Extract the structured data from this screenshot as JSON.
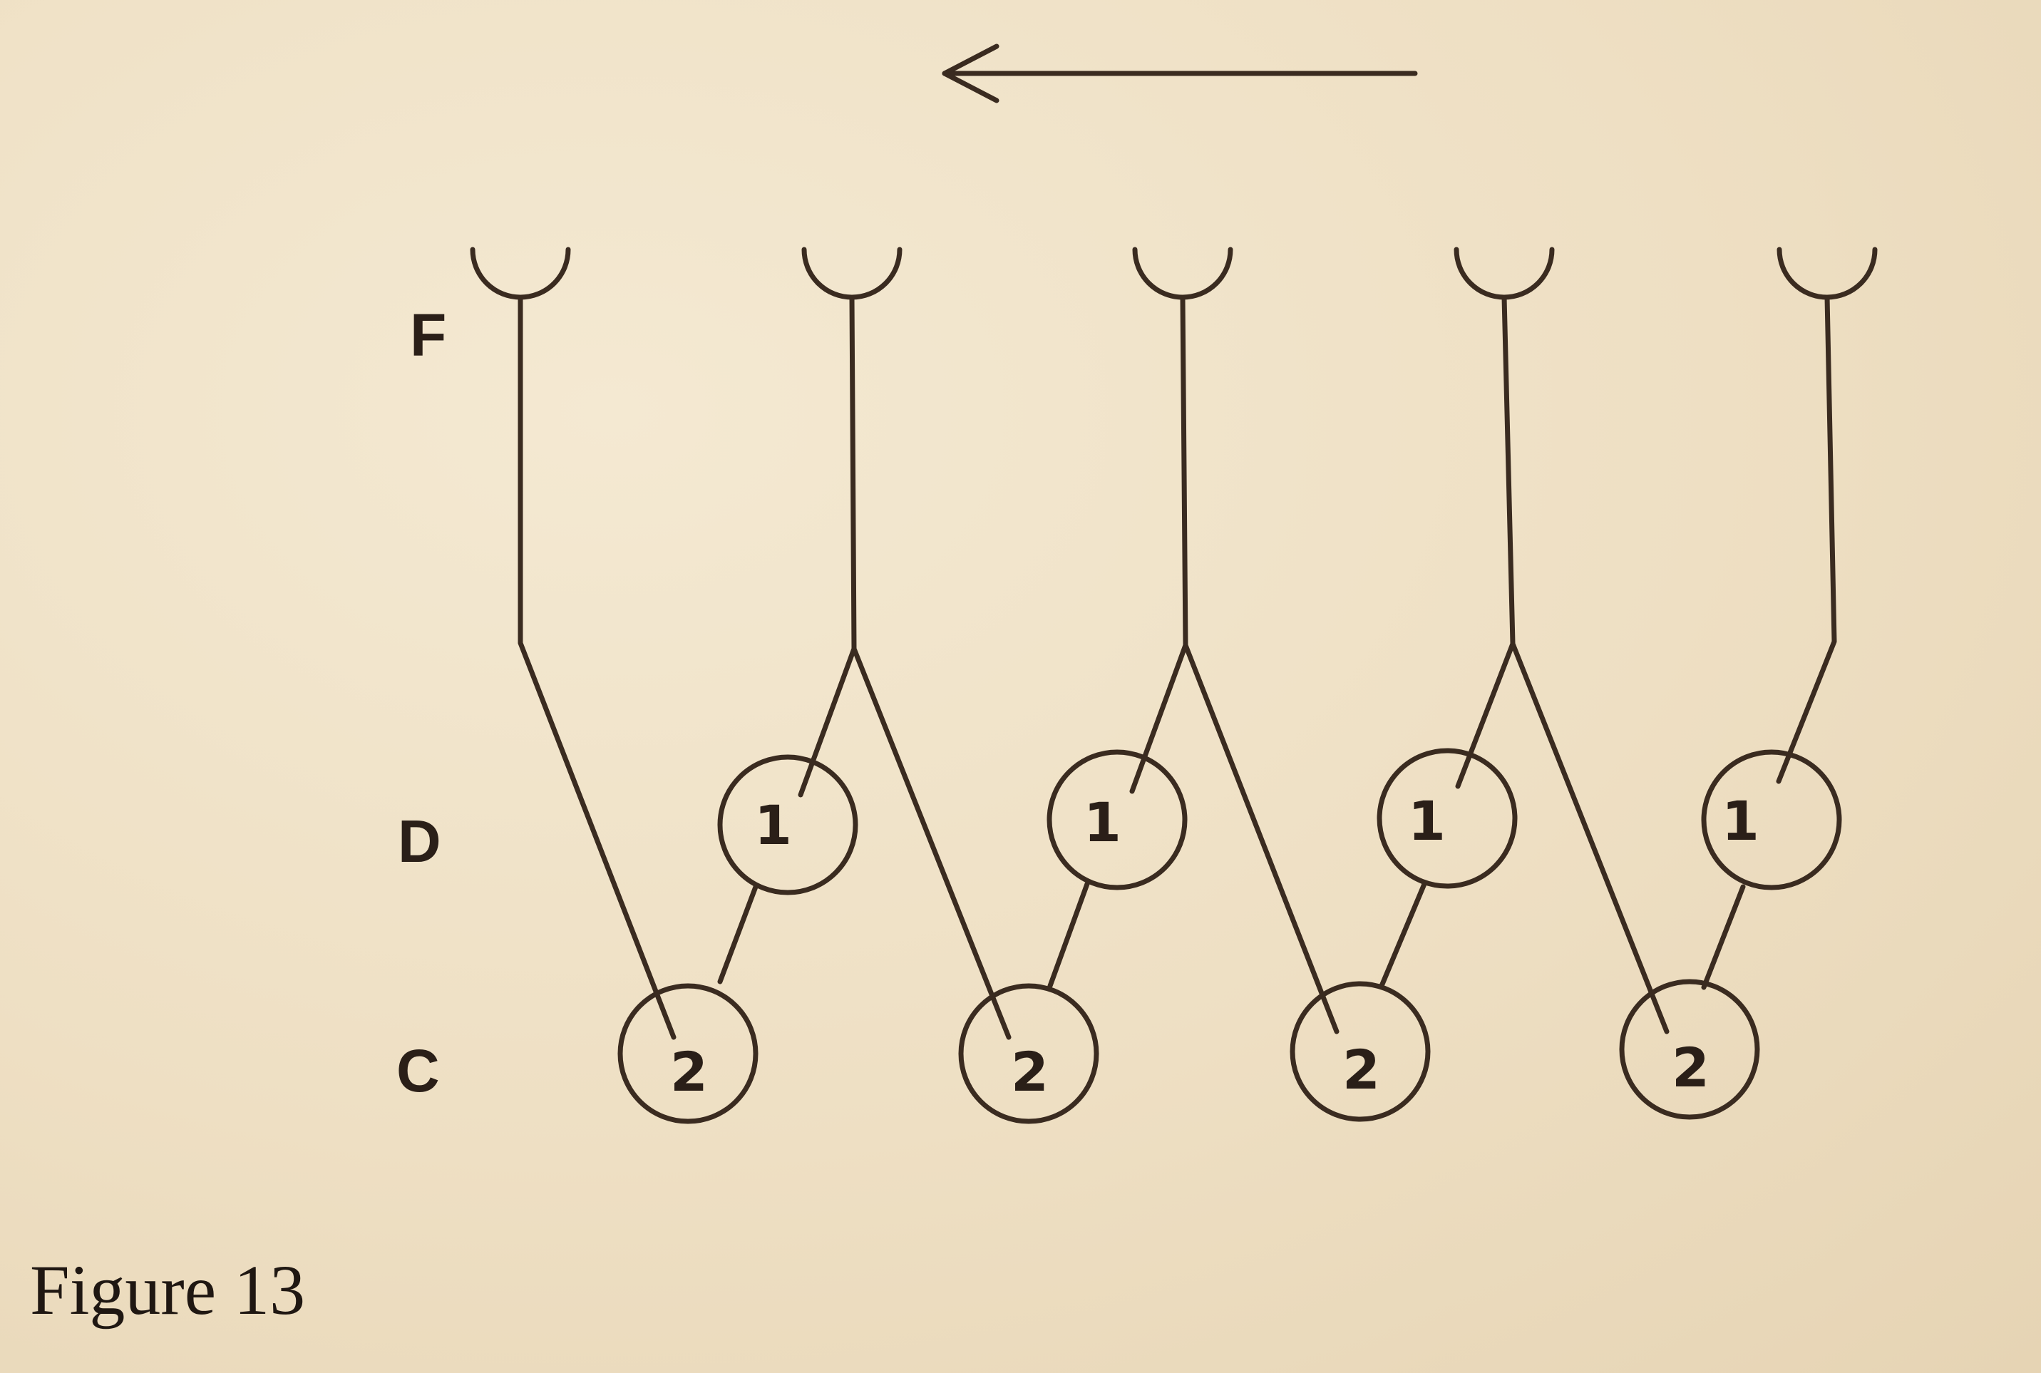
{
  "figure": {
    "caption": "Figure 13",
    "direction_arrow": "left-arrow"
  },
  "row_labels": {
    "f": "F",
    "d": "D",
    "c": "C"
  },
  "nodes": {
    "d_label": "1",
    "c_label": "2"
  },
  "colors": {
    "ink": "#3a2b20",
    "paper": "#efe2c8"
  }
}
